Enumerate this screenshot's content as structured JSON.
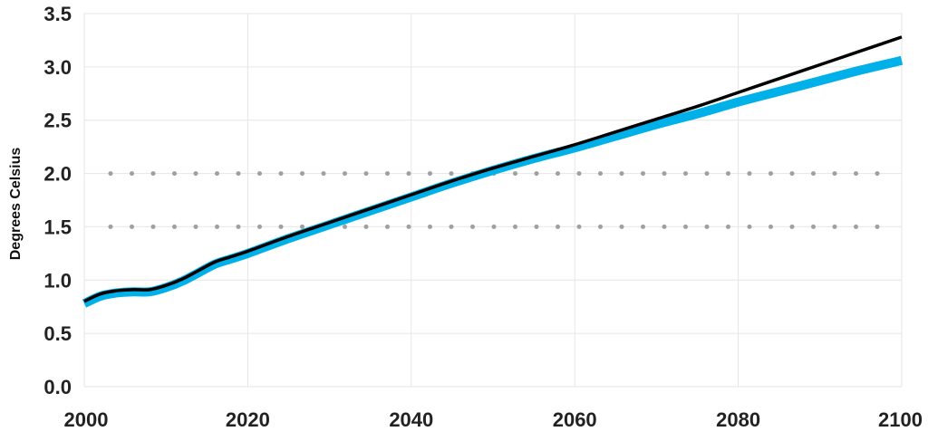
{
  "chart_data": {
    "type": "line",
    "title": "",
    "xlabel": "",
    "ylabel": "Degrees Celsius",
    "xlim": [
      2000,
      2100
    ],
    "ylim": [
      0,
      3.5
    ],
    "x_ticks": [
      "2000",
      "2020",
      "2040",
      "2060",
      "2080",
      "2100"
    ],
    "y_ticks": [
      "0.0",
      "0.5",
      "1.0",
      "1.5",
      "2.0",
      "2.5",
      "3.0",
      "3.5"
    ],
    "grid": true,
    "legend": "none",
    "reference_lines": [
      {
        "y": 2.0,
        "style": "dotted",
        "color": "#a0a0a0"
      },
      {
        "y": 1.5,
        "style": "dotted",
        "color": "#a0a0a0"
      }
    ],
    "series": [
      {
        "color": "#00b0e8",
        "x": [
          2000,
          2002,
          2004,
          2006,
          2008,
          2010,
          2012,
          2014,
          2016,
          2018,
          2020,
          2025,
          2030,
          2035,
          2040,
          2045,
          2050,
          2055,
          2060,
          2065,
          2070,
          2075,
          2080,
          2085,
          2090,
          2095,
          2100
        ],
        "y": [
          0.78,
          0.85,
          0.88,
          0.89,
          0.89,
          0.93,
          0.99,
          1.07,
          1.15,
          1.2,
          1.25,
          1.39,
          1.52,
          1.65,
          1.78,
          1.91,
          2.03,
          2.14,
          2.24,
          2.35,
          2.46,
          2.56,
          2.67,
          2.77,
          2.87,
          2.97,
          3.06
        ]
      },
      {
        "color": "#000000",
        "x": [
          2000,
          2002,
          2004,
          2006,
          2008,
          2010,
          2012,
          2014,
          2016,
          2018,
          2020,
          2025,
          2030,
          2035,
          2040,
          2045,
          2050,
          2055,
          2060,
          2065,
          2070,
          2075,
          2080,
          2085,
          2090,
          2095,
          2100
        ],
        "y": [
          0.8,
          0.87,
          0.9,
          0.91,
          0.91,
          0.95,
          1.01,
          1.09,
          1.17,
          1.22,
          1.27,
          1.41,
          1.54,
          1.67,
          1.8,
          1.93,
          2.05,
          2.16,
          2.27,
          2.39,
          2.51,
          2.63,
          2.76,
          2.89,
          3.02,
          3.15,
          3.28
        ]
      }
    ]
  }
}
